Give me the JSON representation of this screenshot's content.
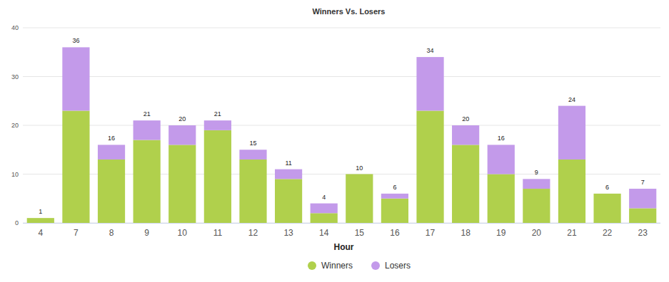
{
  "chart_data": {
    "type": "bar",
    "title": "Winners Vs. Losers",
    "x_label": "Hour",
    "categories": [
      "4",
      "7",
      "8",
      "9",
      "10",
      "11",
      "12",
      "13",
      "14",
      "15",
      "16",
      "17",
      "18",
      "19",
      "20",
      "21",
      "22",
      "23"
    ],
    "series": [
      {
        "name": "Winners",
        "color": "#b0d04c",
        "values": [
          1,
          23,
          13,
          17,
          16,
          19,
          13,
          9,
          2,
          10,
          5,
          23,
          16,
          10,
          7,
          13,
          6,
          3
        ]
      },
      {
        "name": "Losers",
        "color": "#c39aea",
        "values": [
          0,
          13,
          3,
          4,
          4,
          2,
          2,
          2,
          2,
          0,
          1,
          11,
          4,
          6,
          2,
          11,
          0,
          4
        ]
      }
    ],
    "totals": [
      1,
      36,
      16,
      21,
      20,
      21,
      15,
      11,
      4,
      10,
      6,
      34,
      20,
      16,
      9,
      24,
      6,
      7
    ],
    "ylim": [
      0,
      40
    ],
    "yticks": [
      0,
      10,
      20,
      30,
      40
    ],
    "grid": true,
    "stacked": true,
    "legend": "bottom"
  }
}
